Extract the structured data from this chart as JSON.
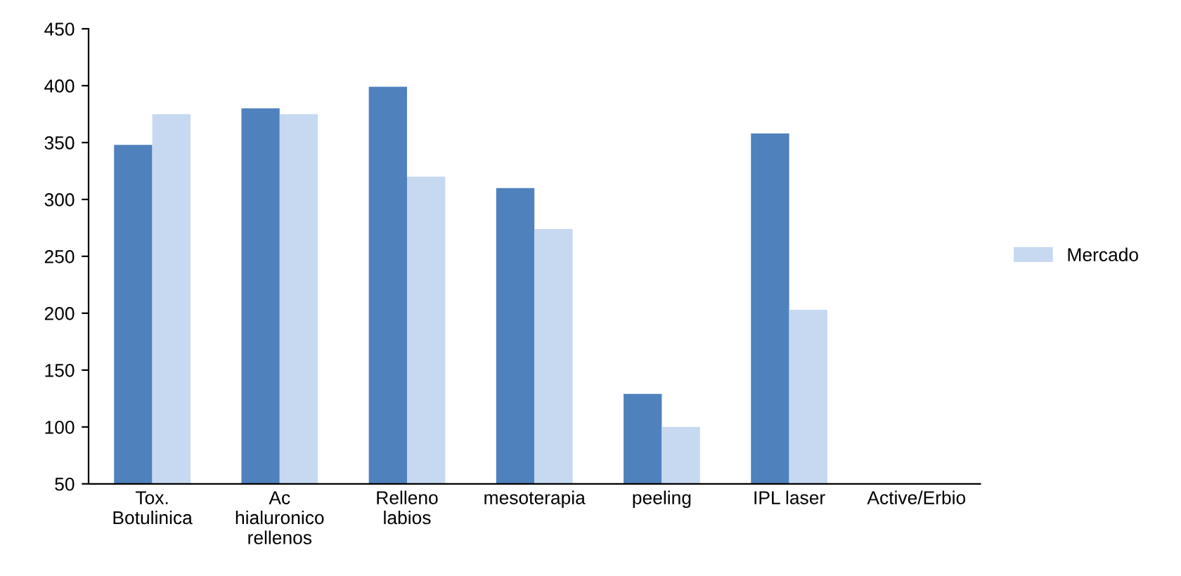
{
  "chart_data": {
    "type": "bar",
    "categories": [
      "Tox.\nBotulinica",
      "Ac\nhialuronico\nrellenos",
      "Relleno\nlabios",
      "mesoterapia",
      "peeling",
      "IPL laser",
      "Active/Erbio"
    ],
    "series": [
      {
        "color": "#4f81bd",
        "values": [
          348,
          380,
          399,
          310,
          129,
          358,
          null
        ]
      },
      {
        "name": "Mercado",
        "color": "#c6d9f1",
        "values": [
          375,
          375,
          320,
          274,
          100,
          203,
          null
        ]
      }
    ],
    "ylim": [
      50,
      450
    ],
    "yticks": [
      50,
      100,
      150,
      200,
      250,
      300,
      350,
      400,
      450
    ],
    "grid": false,
    "legend": "right"
  }
}
